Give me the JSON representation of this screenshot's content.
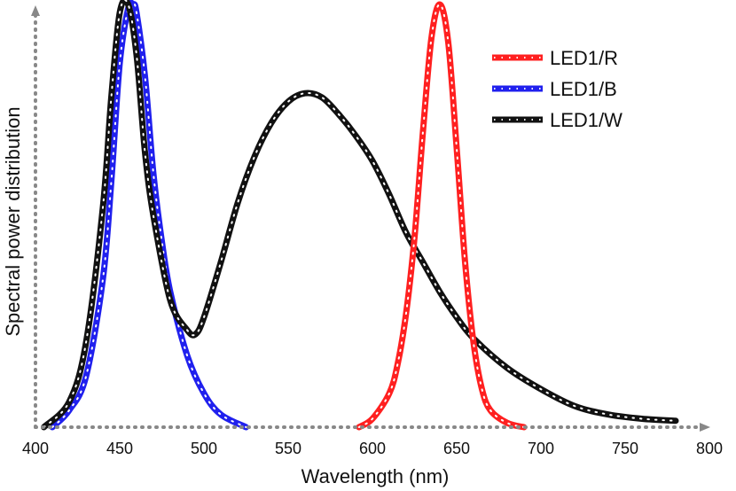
{
  "chart_data": {
    "type": "line",
    "title": "",
    "xlabel": "Wavelength (nm)",
    "ylabel": "Spectral power distribution",
    "xlim": [
      400,
      800
    ],
    "ylim": [
      0,
      1
    ],
    "xticks": [
      400,
      450,
      500,
      550,
      600,
      650,
      700,
      750,
      800
    ],
    "grid": false,
    "legend_position": "top-right",
    "series": [
      {
        "name": "LED1/R",
        "color": "#ff2020",
        "x": [
          592,
          600,
          610,
          615,
          620,
          625,
          630,
          635,
          640,
          645,
          650,
          655,
          660,
          665,
          670,
          680,
          690
        ],
        "y": [
          0.0,
          0.02,
          0.08,
          0.15,
          0.27,
          0.45,
          0.7,
          0.92,
          1.0,
          0.91,
          0.66,
          0.39,
          0.2,
          0.09,
          0.04,
          0.01,
          0.0
        ]
      },
      {
        "name": "LED1/B",
        "color": "#2020ee",
        "x": [
          410,
          420,
          430,
          440,
          445,
          450,
          455,
          458,
          460,
          465,
          470,
          475,
          480,
          490,
          500,
          510,
          525
        ],
        "y": [
          0.0,
          0.04,
          0.12,
          0.35,
          0.58,
          0.86,
          0.99,
          1.0,
          0.98,
          0.83,
          0.6,
          0.44,
          0.32,
          0.17,
          0.08,
          0.03,
          0.0
        ]
      },
      {
        "name": "LED1/W",
        "color": "#111111",
        "x": [
          405,
          420,
          430,
          440,
          445,
          450,
          455,
          460,
          465,
          470,
          480,
          490,
          495,
          500,
          510,
          520,
          530,
          540,
          550,
          560,
          570,
          580,
          590,
          600,
          610,
          620,
          630,
          640,
          650,
          660,
          680,
          700,
          720,
          740,
          760,
          780
        ],
        "y": [
          0.0,
          0.06,
          0.2,
          0.52,
          0.78,
          0.98,
          1.0,
          0.88,
          0.65,
          0.5,
          0.3,
          0.23,
          0.22,
          0.26,
          0.39,
          0.53,
          0.64,
          0.72,
          0.77,
          0.79,
          0.78,
          0.74,
          0.69,
          0.63,
          0.55,
          0.46,
          0.39,
          0.32,
          0.26,
          0.21,
          0.14,
          0.09,
          0.05,
          0.03,
          0.02,
          0.015
        ]
      }
    ]
  }
}
